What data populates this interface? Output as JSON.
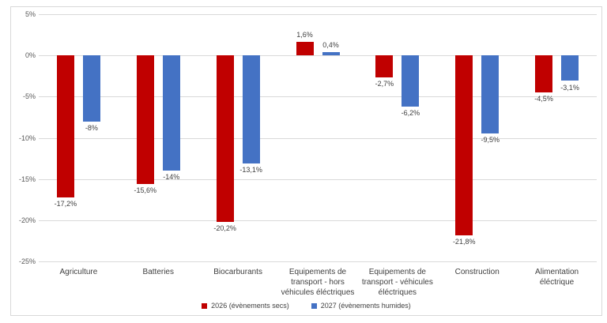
{
  "chart_data": {
    "type": "bar",
    "title": "",
    "categories": [
      "Agriculture",
      "Batteries",
      "Biocarburants",
      "Equipements de transport - hors véhicules éléctriques",
      "Equipements de transport - véhicules éléctriques",
      "Construction",
      "Alimentation éléctrique"
    ],
    "series": [
      {
        "name": "2026 (évènements secs)",
        "color": "#c00000",
        "values": [
          -17.2,
          -15.6,
          -20.2,
          1.6,
          -2.7,
          -21.8,
          -4.5
        ],
        "labels": [
          "-17,2%",
          "-15,6%",
          "-20,2%",
          "1,6%",
          "-2,7%",
          "-21,8%",
          "-4,5%"
        ]
      },
      {
        "name": "2027 (évènements humides)",
        "color": "#4472c4",
        "values": [
          -8,
          -14,
          -13.1,
          0.4,
          -6.2,
          -9.5,
          -3.1
        ],
        "labels": [
          "-8%",
          "-14%",
          "-13,1%",
          "0,4%",
          "-6,2%",
          "-9,5%",
          "-3,1%"
        ]
      }
    ],
    "y_axis": {
      "min": -25,
      "max": 5,
      "step": 5,
      "tick_labels": [
        "5%",
        "0%",
        "-5%",
        "-10%",
        "-15%",
        "-20%",
        "-25%"
      ]
    },
    "grid": true,
    "legend_position": "bottom",
    "colors": {
      "gridline": "#d9d9d9",
      "axis_text": "#595959",
      "label_text": "#404040",
      "frame_border": "#d9d9d9",
      "background": "#ffffff"
    }
  }
}
